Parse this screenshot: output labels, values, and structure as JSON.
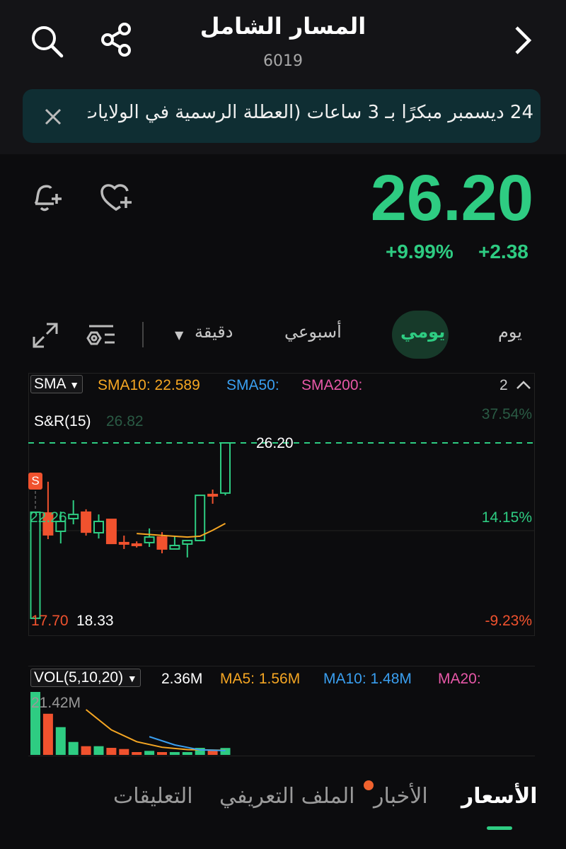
{
  "header": {
    "title": "المسار الشامل",
    "code": "6019",
    "icons": [
      "search-icon",
      "share-icon",
      "chevron-right-icon"
    ]
  },
  "banner": {
    "text": "24 ديسمبر مبكرًا بـ 3 ساعات (العطلة الرسمية في الولايات",
    "close_icon": "close-icon"
  },
  "quote": {
    "price": "26.20",
    "change_pct": "+9.99%",
    "change": "+2.38",
    "color": "#2ecc82",
    "icons": [
      "bell-plus-icon",
      "heart-plus-icon"
    ]
  },
  "periods": {
    "items": [
      "يوم",
      "يومي",
      "أسبوعي",
      "دقيقة"
    ],
    "selected": "يومي",
    "icons": [
      "indicator-settings-icon",
      "expand-icon"
    ]
  },
  "main_chart": {
    "indicator": "SMA",
    "sma10": "SMA10: 22.589",
    "sma50": "SMA50:",
    "sma200": "SMA200:",
    "count": "2",
    "sr": "S&R(15)",
    "top_price": "26.82",
    "top_pct": "37.54%",
    "mid_label": "22.26",
    "mid_pct": "14.15%",
    "low_label": "17.70",
    "low_mark": "18.33",
    "low_pct": "-9.23%",
    "last_label": "26.20",
    "signal": "S"
  },
  "vol_chart": {
    "indicator": "VOL(5,10,20)",
    "vol": "2.36M",
    "ma5": "MA5: 1.56M",
    "ma10": "MA10: 1.48M",
    "ma20": "MA20:",
    "max": "21.42M"
  },
  "chart_data": [
    {
      "type": "candlestick",
      "ylim": [
        17.2,
        27.5
      ],
      "up_color": "#2ecc82",
      "down_color": "#f0522e",
      "candles": [
        [
          17.67,
          22.83,
          22.83,
          17.67
        ],
        [
          22.79,
          21.73,
          24.31,
          21.52
        ],
        [
          21.9,
          22.38,
          22.86,
          21.31
        ],
        [
          22.52,
          22.72,
          23.41,
          22.24
        ],
        [
          22.83,
          21.86,
          22.97,
          21.69
        ],
        [
          21.83,
          22.38,
          22.72,
          21.55
        ],
        [
          22.48,
          21.31,
          22.48,
          21.31
        ],
        [
          21.35,
          21.31,
          21.69,
          21.04
        ],
        [
          21.28,
          21.24,
          21.41,
          21.11
        ],
        [
          21.35,
          21.62,
          22.04,
          21.14
        ],
        [
          21.62,
          21.04,
          21.86,
          20.83
        ],
        [
          21.04,
          21.21,
          21.66,
          21.04
        ],
        [
          21.28,
          21.45,
          21.45,
          20.63
        ],
        [
          21.45,
          23.65,
          23.65,
          21.45
        ],
        [
          23.69,
          23.65,
          23.93,
          23.24
        ],
        [
          23.76,
          26.2,
          26.2,
          23.65
        ]
      ],
      "sma10": [
        [
          9,
          21.79
        ],
        [
          11,
          21.7
        ],
        [
          13,
          21.62
        ],
        [
          14,
          21.66
        ],
        [
          15,
          21.95
        ],
        [
          16,
          22.28
        ]
      ],
      "sr_level": 26.2
    },
    {
      "type": "bar",
      "values": [
        21.42,
        14.0,
        9.45,
        4.4,
        2.96,
        2.96,
        2.4,
        2.0,
        0.96,
        1.37,
        0.96,
        0.96,
        0.96,
        2.4,
        1.44,
        2.36
      ],
      "colors": [
        "up",
        "down",
        "up",
        "up",
        "down",
        "up",
        "down",
        "down",
        "down",
        "up",
        "down",
        "up",
        "up",
        "up",
        "down",
        "up"
      ],
      "ma5": [
        [
          5,
          15.4
        ],
        [
          7,
          8.5
        ],
        [
          9,
          4.5
        ],
        [
          11,
          2.6
        ],
        [
          13,
          1.8
        ],
        [
          16,
          1.56
        ]
      ],
      "ma10": [
        [
          10,
          6.2
        ],
        [
          12,
          3.4
        ],
        [
          14,
          1.7
        ],
        [
          16,
          1.48
        ]
      ],
      "ylim": [
        0,
        22
      ]
    }
  ],
  "bottom_tabs": {
    "items": [
      "الأسعار",
      "الأخبار",
      "الملف التعريفي",
      "التعليقات"
    ],
    "selected": "الأسعار"
  }
}
